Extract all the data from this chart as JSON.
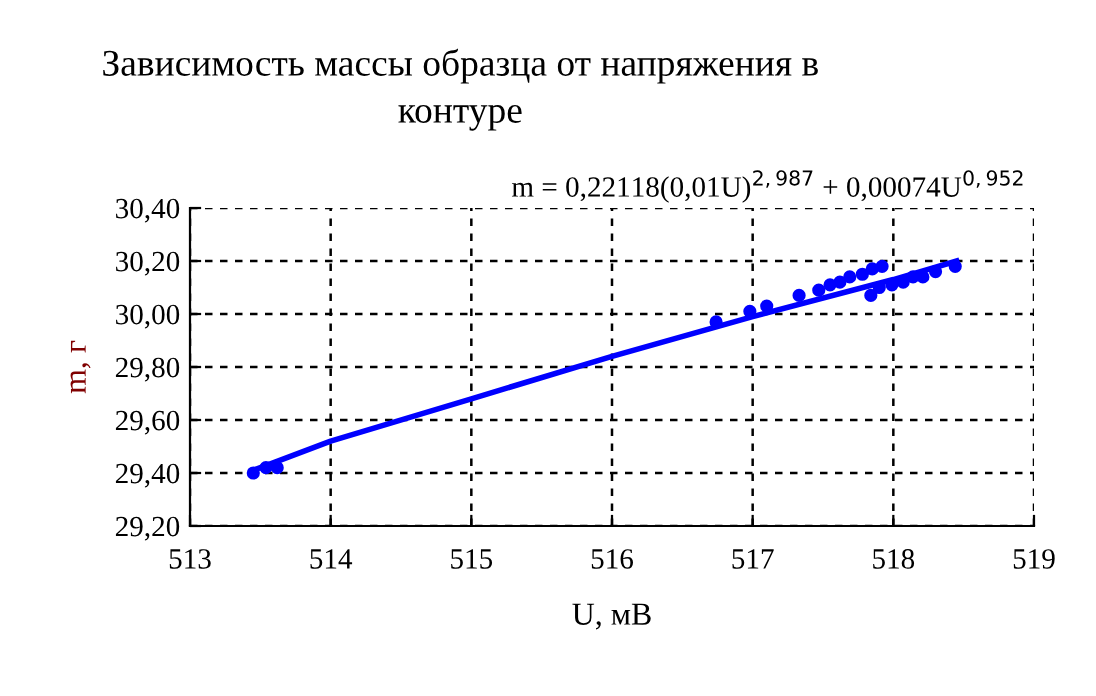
{
  "chart_data": {
    "type": "scatter",
    "title": "Зависимость массы образца от напряжения в\nконтуре",
    "xlabel": "U, мВ",
    "ylabel": "m, г",
    "annotations": [
      "m = 0,22118(0,01U)$^{2,987}$ + 0,00074U$^{0,952}$"
    ],
    "series": [
      {
        "color": "#0000ff",
        "marker": "circle",
        "x": [
          513.45,
          513.54,
          513.62,
          516.74,
          516.98,
          517.1,
          517.33,
          517.47,
          517.55,
          517.62,
          517.69,
          517.78,
          517.85,
          517.92,
          517.84,
          517.9,
          517.99,
          518.07,
          518.14,
          518.21,
          518.3,
          518.44
        ],
        "values": [
          29.4,
          29.42,
          29.42,
          29.97,
          30.01,
          30.03,
          30.07,
          30.09,
          30.11,
          30.12,
          30.14,
          30.15,
          30.17,
          30.18,
          30.07,
          30.1,
          30.11,
          30.12,
          30.14,
          30.14,
          30.16,
          30.18
        ]
      },
      {
        "type": "line",
        "color": "#0000ff",
        "marker": "none",
        "x": [
          513.45,
          513.6,
          514,
          515,
          516,
          517,
          518,
          518.45
        ],
        "values": [
          29.41,
          29.44,
          29.52,
          29.68,
          29.84,
          29.99,
          30.13,
          30.2
        ]
      }
    ],
    "xlim": [
      513,
      519
    ],
    "xticks": [
      513,
      514,
      515,
      516,
      517,
      518,
      519
    ],
    "ylim": [
      29.2,
      30.4
    ],
    "yticks": [
      {
        "value": 29.2,
        "label": "29,20"
      },
      {
        "value": 29.4,
        "label": "29,40"
      },
      {
        "value": 29.6,
        "label": "29,60"
      },
      {
        "value": 29.8,
        "label": "29,80"
      },
      {
        "value": 30.0,
        "label": "30,00"
      },
      {
        "value": 30.2,
        "label": "30,20"
      },
      {
        "value": 30.4,
        "label": "30,40"
      }
    ],
    "grid": true,
    "legend": false
  }
}
